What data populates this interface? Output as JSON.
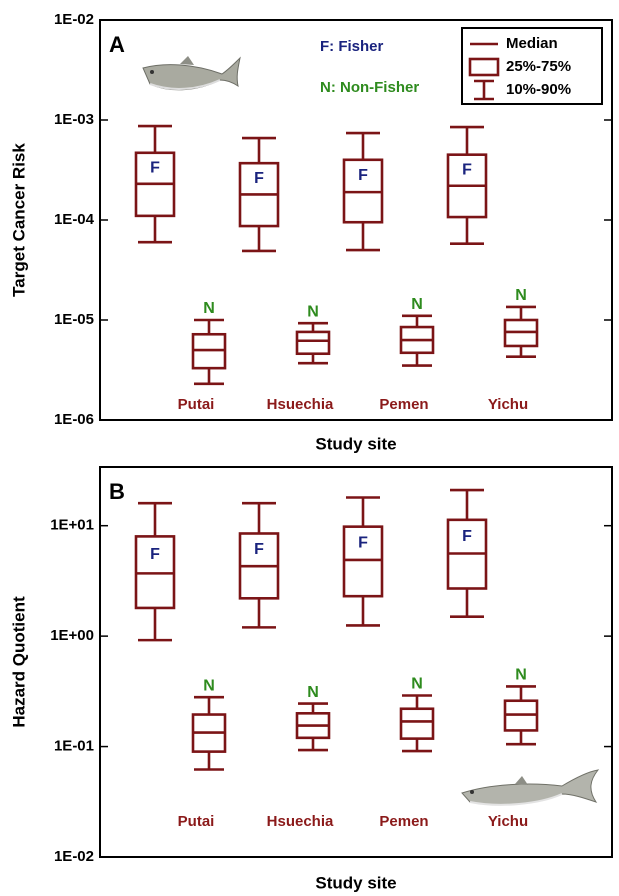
{
  "chart_data": [
    {
      "type": "box",
      "panel_label": "A",
      "y_label": "Target Cancer Risk",
      "x_label": "Study site",
      "log_scale": true,
      "ylim": [
        1e-06,
        0.01
      ],
      "yticks": [
        {
          "value": 0.01,
          "label": "1E-02"
        },
        {
          "value": 0.001,
          "label": "1E-03"
        },
        {
          "value": 0.0001,
          "label": "1E-04"
        },
        {
          "value": 1e-05,
          "label": "1E-05"
        },
        {
          "value": 1e-06,
          "label": "1E-06"
        }
      ],
      "categories": [
        "Putai",
        "Hsuechia",
        "Pemen",
        "Yichu"
      ],
      "legend": "top-right",
      "legend_items": [
        "Median",
        "25%-75%",
        "10%-90%"
      ],
      "series": [
        {
          "name": "F: Fisher",
          "marker_label": "F",
          "color": "#7b1416",
          "label_color": "#1a237e",
          "values": [
            {
              "p10": 6e-05,
              "p25": 0.00011,
              "median": 0.00023,
              "p75": 0.00047,
              "p90": 0.00087
            },
            {
              "p10": 4.9e-05,
              "p25": 8.7e-05,
              "median": 0.00018,
              "p75": 0.00037,
              "p90": 0.00066
            },
            {
              "p10": 5e-05,
              "p25": 9.5e-05,
              "median": 0.00019,
              "p75": 0.0004,
              "p90": 0.00074
            },
            {
              "p10": 5.8e-05,
              "p25": 0.000107,
              "median": 0.00022,
              "p75": 0.00045,
              "p90": 0.00085
            }
          ]
        },
        {
          "name": "N: Non-Fisher",
          "marker_label": "N",
          "color": "#7b1416",
          "label_color": "#2e8b1e",
          "values": [
            {
              "p10": 2.3e-06,
              "p25": 3.3e-06,
              "median": 5e-06,
              "p75": 7.2e-06,
              "p90": 1e-05
            },
            {
              "p10": 3.7e-06,
              "p25": 4.6e-06,
              "median": 6.2e-06,
              "p75": 7.6e-06,
              "p90": 9.3e-06
            },
            {
              "p10": 3.5e-06,
              "p25": 4.7e-06,
              "median": 6.3e-06,
              "p75": 8.5e-06,
              "p90": 1.1e-05
            },
            {
              "p10": 4.3e-06,
              "p25": 5.5e-06,
              "median": 7.6e-06,
              "p75": 1e-05,
              "p90": 1.35e-05
            }
          ]
        }
      ]
    },
    {
      "type": "box",
      "panel_label": "B",
      "y_label": "Hazard Quotient",
      "x_label": "Study site",
      "log_scale": true,
      "ylim": [
        0.01,
        34
      ],
      "yticks": [
        {
          "value": 10,
          "label": "1E+01"
        },
        {
          "value": 1,
          "label": "1E+00"
        },
        {
          "value": 0.1,
          "label": "1E-01"
        },
        {
          "value": 0.01,
          "label": "1E-02"
        }
      ],
      "categories": [
        "Putai",
        "Hsuechia",
        "Pemen",
        "Yichu"
      ],
      "series": [
        {
          "marker_label": "F",
          "color": "#7b1416",
          "label_color": "#1a237e",
          "values": [
            {
              "p10": 0.92,
              "p25": 1.8,
              "median": 3.7,
              "p75": 8,
              "p90": 16
            },
            {
              "p10": 1.2,
              "p25": 2.2,
              "median": 4.3,
              "p75": 8.5,
              "p90": 16
            },
            {
              "p10": 1.25,
              "p25": 2.3,
              "median": 4.9,
              "p75": 9.8,
              "p90": 18
            },
            {
              "p10": 1.5,
              "p25": 2.7,
              "median": 5.6,
              "p75": 11.3,
              "p90": 21
            }
          ]
        },
        {
          "marker_label": "N",
          "color": "#7b1416",
          "label_color": "#2e8b1e",
          "values": [
            {
              "p10": 0.062,
              "p25": 0.09,
              "median": 0.134,
              "p75": 0.195,
              "p90": 0.28
            },
            {
              "p10": 0.093,
              "p25": 0.12,
              "median": 0.155,
              "p75": 0.2,
              "p90": 0.245
            },
            {
              "p10": 0.091,
              "p25": 0.118,
              "median": 0.169,
              "p75": 0.22,
              "p90": 0.29
            },
            {
              "p10": 0.105,
              "p25": 0.14,
              "median": 0.195,
              "p75": 0.26,
              "p90": 0.35
            }
          ]
        }
      ]
    }
  ]
}
